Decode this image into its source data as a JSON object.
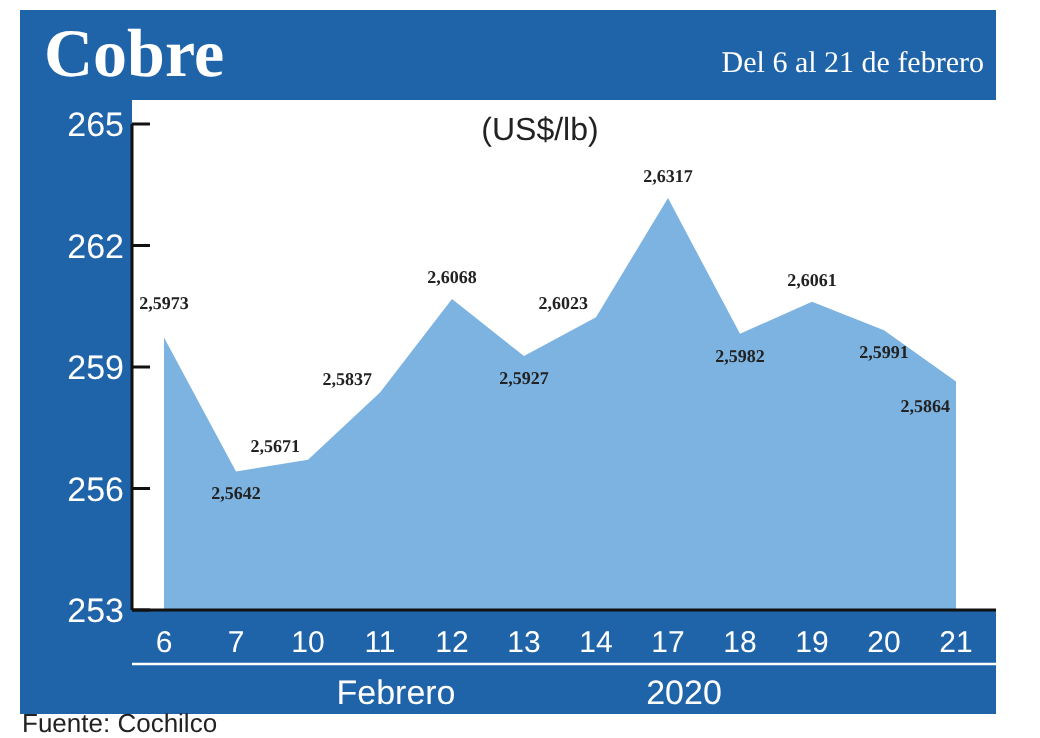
{
  "chart_data": {
    "type": "area",
    "title": "Cobre",
    "subtitle": "Del 6 al 21 de febrero",
    "ylabel": "(US$/lb)",
    "xlabel": "Febrero",
    "categories": [
      "6",
      "7",
      "10",
      "11",
      "12",
      "13",
      "14",
      "17",
      "18",
      "19",
      "20",
      "21"
    ],
    "values": [
      259.73,
      256.42,
      256.71,
      258.37,
      260.68,
      259.27,
      260.23,
      263.17,
      259.82,
      260.61,
      259.91,
      258.64
    ],
    "value_labels": [
      "2,5973",
      "2,5642",
      "2,5671",
      "2,5837",
      "2,6068",
      "2,5927",
      "2,6023",
      "2,6317",
      "2,5982",
      "2,6061",
      "2,5991",
      "2,5864"
    ],
    "color": "#7db3e1",
    "ylim": [
      253,
      265
    ],
    "yticks": [
      253,
      256,
      259,
      262,
      265
    ],
    "grid": false,
    "annotations": [
      "2020",
      "Fuente: Cochilco"
    ]
  }
}
